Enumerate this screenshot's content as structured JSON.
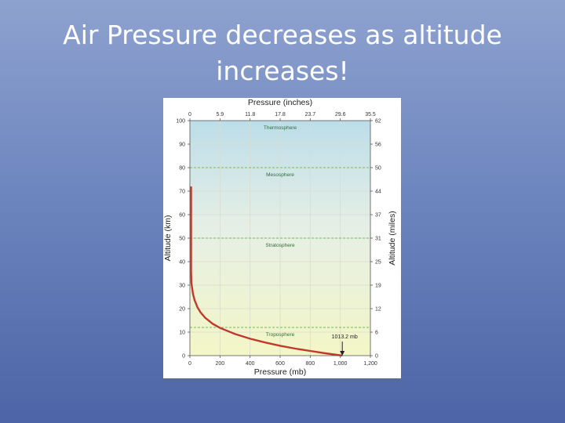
{
  "slide": {
    "title_line1": "Air Pressure decreases as altitude",
    "title_line2": "increases!"
  },
  "chart_data": {
    "type": "line",
    "top_axis_label": "Pressure (inches)",
    "xlabel": "Pressure (mb)",
    "ylabel": "Altitude (km)",
    "right_axis_label": "Altitude (miles)",
    "xlim": [
      0,
      1200
    ],
    "ylim": [
      0,
      100
    ],
    "x_ticks": [
      "0",
      "200",
      "400",
      "600",
      "800",
      "1,000",
      "1,200"
    ],
    "y_ticks": [
      "0",
      "10",
      "20",
      "30",
      "40",
      "50",
      "60",
      "70",
      "80",
      "90",
      "100"
    ],
    "top_ticks": [
      "0",
      "5.9",
      "11.8",
      "17.8",
      "23.7",
      "29.6",
      "35.5"
    ],
    "right_ticks": [
      "0",
      "6",
      "12",
      "19",
      "25",
      "31",
      "37",
      "44",
      "50",
      "56",
      "62"
    ],
    "layers": [
      {
        "name": "Thermosphere",
        "label_altitude": 97
      },
      {
        "name": "Mesosphere",
        "label_altitude": 77
      },
      {
        "name": "Stratosphere",
        "label_altitude": 47
      },
      {
        "name": "Troposphere",
        "label_altitude": 9
      }
    ],
    "boundaries_km": [
      12,
      50,
      80
    ],
    "annotation": {
      "text": "1013.2 mb",
      "x": 1013.2,
      "y": 0
    },
    "series": [
      {
        "x": [
          1013.2,
          900,
          800,
          700,
          600,
          500,
          400,
          300,
          200,
          150,
          100,
          70,
          50,
          30,
          20,
          10,
          5,
          2,
          1,
          0.5,
          0.1,
          0.03
        ],
        "y": [
          0,
          1,
          2,
          3,
          4.2,
          5.6,
          7.2,
          9.2,
          11.8,
          13.6,
          16.2,
          18.5,
          20.6,
          23.8,
          26.5,
          31,
          36,
          43,
          48,
          53,
          64,
          72
        ]
      }
    ],
    "colors": {
      "curve": "#c0392b",
      "boundary": "#6dbb5e",
      "gridline": "#d8dccf"
    },
    "grid": true
  }
}
